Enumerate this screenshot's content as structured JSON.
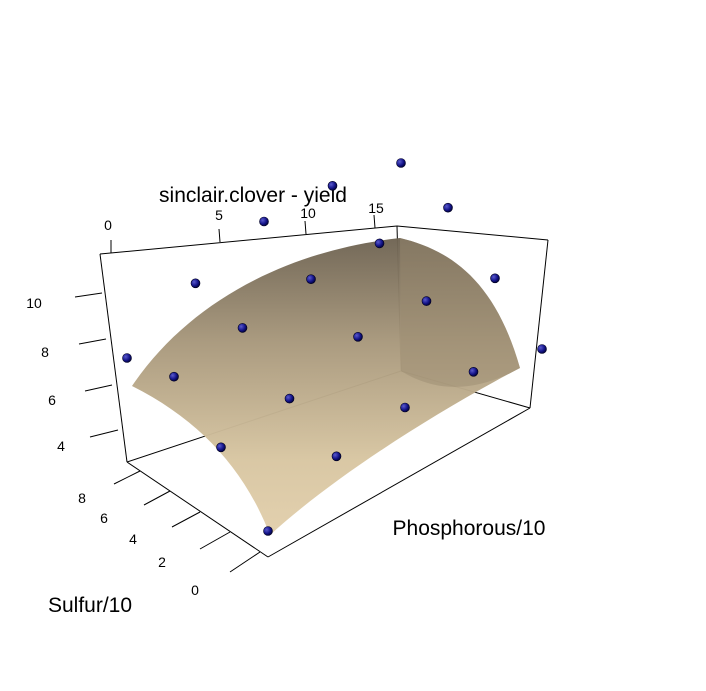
{
  "chart_data": {
    "type": "scatter",
    "title": "sinclair.clover - yield",
    "xlabel": "Phosphorous/10",
    "ylabel": "Sulfur/10",
    "zlabel": "",
    "x_ticks": [
      "0",
      "5",
      "10",
      "15"
    ],
    "y_ticks": [
      "0",
      "2",
      "4",
      "6",
      "8"
    ],
    "z_ticks": [
      "4",
      "6",
      "8",
      "10"
    ],
    "xlim": [
      0,
      16
    ],
    "ylim": [
      0,
      9
    ],
    "zlim": [
      3,
      11
    ],
    "surface": {
      "description_of_fit": "smooth quadratic response surface",
      "color": "#cdb896"
    },
    "points_color": "#1a1a8c",
    "series": [
      {
        "name": "",
        "points": [
          {
            "x": 0,
            "y": 0,
            "z": 4
          },
          {
            "x": 0,
            "y": 3,
            "z": 6
          },
          {
            "x": 0,
            "y": 6,
            "z": 7.5
          },
          {
            "x": 0,
            "y": 9,
            "z": 7
          },
          {
            "x": 4,
            "y": 0,
            "z": 6
          },
          {
            "x": 4,
            "y": 3,
            "z": 7
          },
          {
            "x": 4,
            "y": 6,
            "z": 8.5
          },
          {
            "x": 4,
            "y": 9,
            "z": 9
          },
          {
            "x": 8,
            "y": 0,
            "z": 7
          },
          {
            "x": 8,
            "y": 3,
            "z": 8.5
          },
          {
            "x": 8,
            "y": 6,
            "z": 9.5
          },
          {
            "x": 8,
            "y": 9,
            "z": 10.5
          },
          {
            "x": 12,
            "y": 0,
            "z": 7.5
          },
          {
            "x": 12,
            "y": 3,
            "z": 9
          },
          {
            "x": 12,
            "y": 6,
            "z": 10
          },
          {
            "x": 12,
            "y": 9,
            "z": 11
          },
          {
            "x": 16,
            "y": 0,
            "z": 7.5
          },
          {
            "x": 16,
            "y": 3,
            "z": 9
          },
          {
            "x": 16,
            "y": 6,
            "z": 10.5
          },
          {
            "x": 16,
            "y": 9,
            "z": 11
          }
        ]
      }
    ]
  }
}
